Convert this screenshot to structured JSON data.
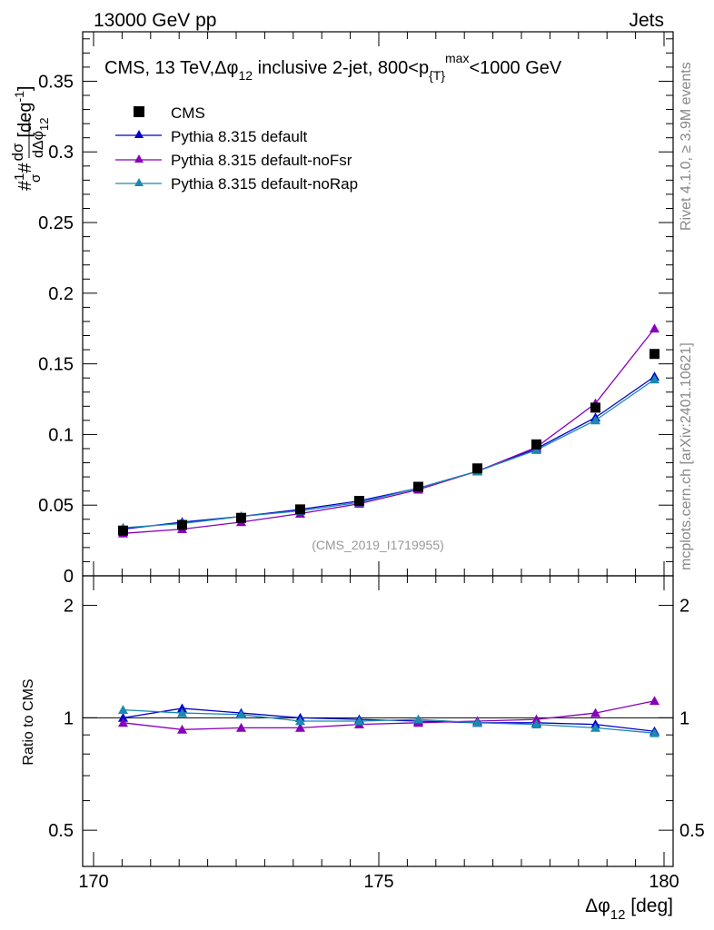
{
  "header": {
    "left": "13000 GeV pp",
    "right": "Jets"
  },
  "side_labels": {
    "rivet": "Rivet 4.1.0, ≥ 3.9M events",
    "mcplots": "mcplots.cern.ch [arXiv:2401.10621]"
  },
  "chart_data": {
    "type": "scatter",
    "title": {
      "main": "CMS, 13 TeV,",
      "dphi": "Δφ",
      "dphi_sub": "12",
      "mid": " inclusive 2-jet, 800<p",
      "pt_sub": "{T}",
      "pt_sup": "max",
      "end": "<1000 GeV"
    },
    "ylabel": {
      "hash1": "#",
      "one": "1",
      "sigma": "σ",
      "hash2": "#",
      "dsigma": "dσ",
      "dphi": "dΔφ",
      "dphi_sub": "12",
      "unit": "[deg",
      "unit_sup": "-1",
      "unit_close": "]"
    },
    "xlabel": {
      "main": "Δφ",
      "sub": "12",
      "unit": " [deg]"
    },
    "ratio_ylabel": "Ratio to CMS",
    "watermark": "(CMS_2019_I1719955)",
    "xlim": [
      170,
      180
    ],
    "ylim": [
      0,
      0.385
    ],
    "ratio_ylim": [
      0.4,
      2.4
    ],
    "x_ticks": [
      "170",
      "175",
      "180"
    ],
    "y_ticks": [
      "0",
      "0.05",
      "0.1",
      "0.15",
      "0.2",
      "0.25",
      "0.3",
      "0.35"
    ],
    "ratio_ticks": [
      "0.5",
      "1",
      "2"
    ],
    "x": [
      170.5,
      171.5,
      172.5,
      173.5,
      174.5,
      175.5,
      176.5,
      177.5,
      178.5,
      179.5
    ],
    "series": [
      {
        "name": "CMS",
        "color": "#000000",
        "marker": "square",
        "values": [
          0.032,
          0.036,
          0.041,
          0.047,
          0.053,
          0.063,
          0.076,
          0.093,
          0.119,
          0.157
        ],
        "ratio": []
      },
      {
        "name": "Pythia 8.315 default",
        "color": "#0000cc",
        "marker": "triangle",
        "values": [
          0.033,
          0.038,
          0.042,
          0.047,
          0.053,
          0.062,
          0.074,
          0.09,
          0.112,
          0.141
        ],
        "ratio": [
          1.0,
          1.06,
          1.03,
          1.0,
          0.99,
          0.98,
          0.97,
          0.97,
          0.96,
          0.92
        ]
      },
      {
        "name": "Pythia 8.315 default-noFsr",
        "color": "#8800bb",
        "marker": "triangle",
        "values": [
          0.03,
          0.033,
          0.038,
          0.044,
          0.051,
          0.061,
          0.074,
          0.091,
          0.122,
          0.175
        ],
        "ratio": [
          0.97,
          0.93,
          0.94,
          0.94,
          0.96,
          0.97,
          0.98,
          0.99,
          1.03,
          1.11
        ]
      },
      {
        "name": "Pythia 8.315 default-noRap",
        "color": "#1a8ab0",
        "marker": "triangle",
        "values": [
          0.034,
          0.037,
          0.042,
          0.046,
          0.052,
          0.062,
          0.074,
          0.089,
          0.11,
          0.139
        ],
        "ratio": [
          1.05,
          1.03,
          1.02,
          0.98,
          0.98,
          0.99,
          0.97,
          0.96,
          0.94,
          0.91
        ]
      }
    ]
  }
}
